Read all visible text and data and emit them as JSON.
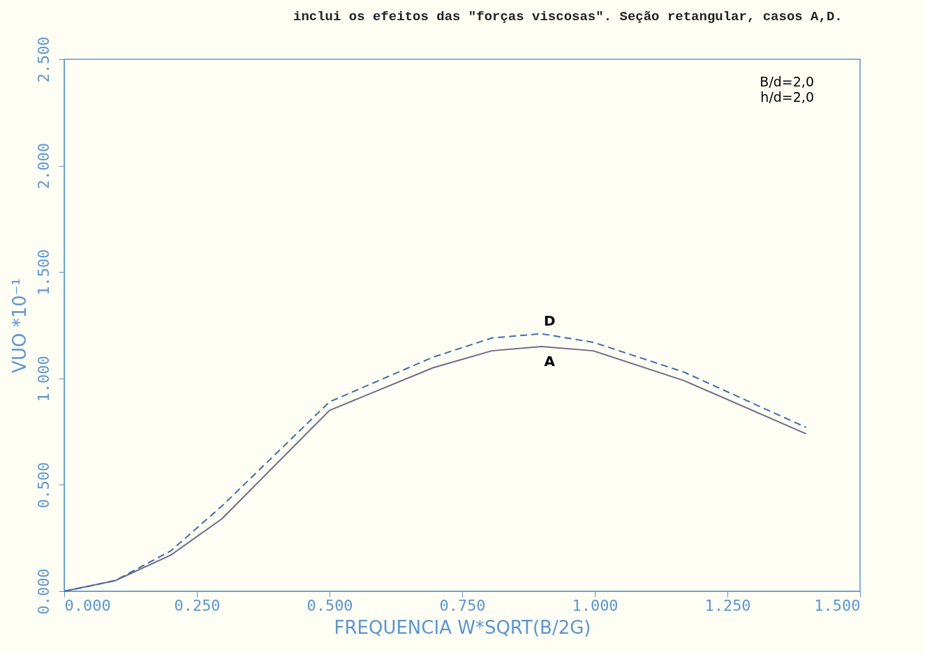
{
  "chart_data": {
    "type": "line",
    "title": "inclui os efeitos das \"forças viscosas\". Seção retangular, casos A,D.",
    "xlabel": "FREQUENCIA   W*SQRT(B/2G)",
    "ylabel": "VUO   *10⁻¹",
    "annotations": [
      "B/d=2,0",
      "h/d=2,0"
    ],
    "x": [
      0,
      0.096,
      0.201,
      0.297,
      0.5,
      0.695,
      0.806,
      0.899,
      0.997,
      1.168,
      1.398
    ],
    "series": [
      {
        "name": "A",
        "color": "#6e6a86",
        "line_style": "solid",
        "values": [
          0,
          0.05,
          0.17,
          0.34,
          0.85,
          1.05,
          1.13,
          1.15,
          1.13,
          0.99,
          0.74
        ]
      },
      {
        "name": "D",
        "color": "#3a6fa8",
        "line_style": "dashed",
        "values": [
          0,
          0.05,
          0.19,
          0.4,
          0.89,
          1.1,
          1.19,
          1.21,
          1.17,
          1.03,
          0.77
        ]
      }
    ],
    "xlim": [
      0,
      1.5
    ],
    "ylim": [
      0,
      2.5
    ],
    "xticks": [
      {
        "value": 0,
        "label": "0.000"
      },
      {
        "value": 0.25,
        "label": "0.250"
      },
      {
        "value": 0.5,
        "label": "0.500"
      },
      {
        "value": 0.75,
        "label": "0.750"
      },
      {
        "value": 1,
        "label": "1.000"
      },
      {
        "value": 1.25,
        "label": "1.250"
      },
      {
        "value": 1.5,
        "label": "1.500"
      }
    ],
    "yticks": [
      {
        "value": 0,
        "label": "0.000"
      },
      {
        "value": 0.5,
        "label": "0.500"
      },
      {
        "value": 1,
        "label": "1.000"
      },
      {
        "value": 1.5,
        "label": "1.500"
      },
      {
        "value": 2,
        "label": "2.000"
      },
      {
        "value": 2.5,
        "label": "2.500"
      }
    ],
    "grid": false,
    "marker": "none"
  }
}
